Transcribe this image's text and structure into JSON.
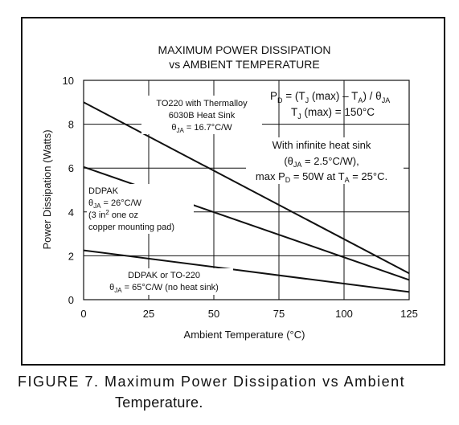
{
  "chart_data": {
    "type": "line",
    "title_line1": "MAXIMUM POWER DISSIPATION",
    "title_line2": "vs AMBIENT TEMPERATURE",
    "xlabel": "Ambient Temperature (°C)",
    "ylabel": "Power Dissipation (Watts)",
    "xlim": [
      0,
      125
    ],
    "ylim": [
      0,
      10
    ],
    "x_ticks": [
      0,
      25,
      50,
      75,
      100,
      125
    ],
    "y_ticks": [
      0,
      2,
      4,
      6,
      8,
      10
    ],
    "grid": true,
    "series": [
      {
        "x": [
          0,
          125
        ],
        "y": [
          9.0,
          1.2
        ]
      },
      {
        "x": [
          0,
          125
        ],
        "y": [
          6.05,
          0.9
        ]
      },
      {
        "x": [
          0,
          125
        ],
        "y": [
          2.25,
          0.35
        ]
      }
    ],
    "annotations": {
      "formula_line1": "P_D = (T_J (max) – T_A) / θ_JA",
      "formula_line2": "T_J (max) = 150°C",
      "to220_line1": "TO220 with Thermalloy",
      "to220_line2": "6030B Heat Sink",
      "to220_line3": "θJA = 16.7°C/W",
      "infinite_line1": "With infinite heat sink",
      "infinite_line2": "(θJA = 2.5°C/W),",
      "infinite_line3": "max PD = 50W at TA = 25°C.",
      "ddpak_line1": "DDPAK",
      "ddpak_line2": "θJA = 26°C/W",
      "ddpak_line3": "(3 in2 one oz",
      "ddpak_line4": "copper mounting pad)",
      "noheat_line1": "DDPAK or TO-220",
      "noheat_line2": "θJA = 65°C/W (no heat sink)"
    }
  },
  "caption": {
    "line1": "FIGURE 7. Maximum Power Dissipation vs Ambient",
    "line2": "Temperature."
  }
}
